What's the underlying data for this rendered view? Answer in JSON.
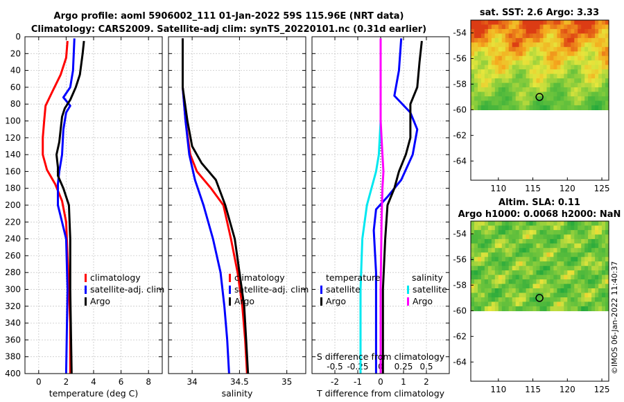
{
  "chart_data": [
    {
      "type": "line",
      "id": "temperature",
      "title": [
        "Argo profile: aoml 5906002_111 01-Jan-2022 59S 115.96E (NRT data)",
        "Climatology: CARS2009. Satellite-adj clim: synTS_20220101.nc (0.31d earlier)"
      ],
      "xlabel": "temperature (deg C)",
      "xlim": [
        -1,
        9
      ],
      "ylim": [
        400,
        0
      ],
      "xticks": [
        "0",
        "2",
        "4",
        "6",
        "8"
      ],
      "xtick_values": [
        0,
        2,
        4,
        6,
        8
      ],
      "yticks": [
        "0",
        "20",
        "40",
        "60",
        "80",
        "100",
        "120",
        "140",
        "160",
        "180",
        "200",
        "220",
        "240",
        "260",
        "280",
        "300",
        "320",
        "340",
        "360",
        "380",
        "400"
      ],
      "ytick_values": [
        0,
        20,
        40,
        60,
        80,
        100,
        120,
        140,
        160,
        180,
        200,
        220,
        240,
        260,
        280,
        300,
        320,
        340,
        360,
        380,
        400
      ],
      "legend": [
        "climatology",
        "satellite-adj. clim",
        "Argo"
      ],
      "series": [
        {
          "name": "climatology",
          "color": "#ff0000",
          "points": [
            [
              2.1,
              5
            ],
            [
              2.0,
              25
            ],
            [
              1.6,
              45
            ],
            [
              1.0,
              65
            ],
            [
              0.5,
              82
            ],
            [
              0.4,
              100
            ],
            [
              0.3,
              120
            ],
            [
              0.3,
              140
            ],
            [
              0.6,
              158
            ],
            [
              1.2,
              175
            ],
            [
              1.7,
              195
            ],
            [
              2.0,
              220
            ],
            [
              2.1,
              260
            ],
            [
              2.2,
              300
            ],
            [
              2.3,
              340
            ],
            [
              2.3,
              400
            ]
          ]
        },
        {
          "name": "satellite-adj. clim",
          "color": "#0000ff",
          "points": [
            [
              2.6,
              2
            ],
            [
              2.5,
              40
            ],
            [
              2.3,
              60
            ],
            [
              1.8,
              72
            ],
            [
              2.3,
              82
            ],
            [
              2.0,
              90
            ],
            [
              1.8,
              110
            ],
            [
              1.7,
              140
            ],
            [
              1.5,
              160
            ],
            [
              1.4,
              175
            ],
            [
              1.4,
              200
            ],
            [
              1.7,
              220
            ],
            [
              2.0,
              240
            ],
            [
              2.1,
              300
            ],
            [
              2.0,
              400
            ]
          ]
        },
        {
          "name": "Argo",
          "color": "#000000",
          "points": [
            [
              3.3,
              5
            ],
            [
              3.2,
              20
            ],
            [
              3.0,
              45
            ],
            [
              2.7,
              60
            ],
            [
              2.3,
              75
            ],
            [
              1.9,
              85
            ],
            [
              1.7,
              95
            ],
            [
              1.6,
              110
            ],
            [
              1.5,
              125
            ],
            [
              1.3,
              140
            ],
            [
              1.4,
              155
            ],
            [
              1.4,
              165
            ],
            [
              1.8,
              180
            ],
            [
              2.2,
              200
            ],
            [
              2.3,
              240
            ],
            [
              2.3,
              300
            ],
            [
              2.4,
              400
            ]
          ]
        }
      ]
    },
    {
      "type": "line",
      "id": "salinity",
      "xlabel": "salinity",
      "xlim": [
        33.75,
        35.2
      ],
      "ylim": [
        400,
        0
      ],
      "xticks": [
        "34",
        "34.5",
        "35"
      ],
      "xtick_values": [
        34,
        34.5,
        35
      ],
      "legend": [
        "climatology",
        "satellite-adj. clim",
        "Argo"
      ],
      "series": [
        {
          "name": "climatology",
          "color": "#ff0000",
          "points": [
            [
              33.9,
              2
            ],
            [
              33.9,
              60
            ],
            [
              33.93,
              100
            ],
            [
              33.98,
              140
            ],
            [
              34.05,
              160
            ],
            [
              34.2,
              180
            ],
            [
              34.33,
              200
            ],
            [
              34.41,
              240
            ],
            [
              34.48,
              280
            ],
            [
              34.53,
              320
            ],
            [
              34.56,
              360
            ],
            [
              34.58,
              400
            ]
          ]
        },
        {
          "name": "satellite-adj. clim",
          "color": "#0000ff",
          "points": [
            [
              33.9,
              2
            ],
            [
              33.9,
              60
            ],
            [
              33.93,
              100
            ],
            [
              33.97,
              140
            ],
            [
              34.03,
              170
            ],
            [
              34.12,
              200
            ],
            [
              34.22,
              240
            ],
            [
              34.3,
              280
            ],
            [
              34.34,
              320
            ],
            [
              34.37,
              360
            ],
            [
              34.39,
              400
            ]
          ]
        },
        {
          "name": "Argo",
          "color": "#000000",
          "points": [
            [
              33.9,
              2
            ],
            [
              33.9,
              60
            ],
            [
              33.95,
              100
            ],
            [
              34.0,
              130
            ],
            [
              34.1,
              150
            ],
            [
              34.25,
              170
            ],
            [
              34.35,
              200
            ],
            [
              34.45,
              240
            ],
            [
              34.5,
              280
            ],
            [
              34.55,
              320
            ],
            [
              34.57,
              360
            ],
            [
              34.59,
              400
            ]
          ]
        }
      ]
    },
    {
      "type": "line",
      "id": "difference",
      "xlabel": "T difference from climatology",
      "top_label": "S difference from climatology",
      "xlim": [
        -3,
        3
      ],
      "ylim": [
        400,
        0
      ],
      "xticks": [
        "-2",
        "-1",
        "0",
        "1",
        "2"
      ],
      "xtick_values": [
        -2,
        -1,
        0,
        1,
        2
      ],
      "sticks": [
        "-0.5",
        "-0.25",
        "0",
        "0.25",
        "0.5"
      ],
      "stick_values": [
        -0.5,
        -0.25,
        0,
        0.25,
        0.5
      ],
      "s_scale": 4,
      "legend_temperature": {
        "heading": "temperature",
        "items": [
          "satellite",
          "Argo"
        ]
      },
      "legend_salinity": {
        "heading": "salinity",
        "items": [
          "satellite",
          "Argo"
        ]
      },
      "series": [
        {
          "name": "temperature satellite",
          "color": "#0000ff",
          "points": [
            [
              0.9,
              2
            ],
            [
              0.8,
              40
            ],
            [
              0.6,
              70
            ],
            [
              1.3,
              90
            ],
            [
              1.6,
              110
            ],
            [
              1.4,
              140
            ],
            [
              0.9,
              170
            ],
            [
              0.3,
              190
            ],
            [
              -0.2,
              205
            ],
            [
              -0.3,
              230
            ],
            [
              -0.2,
              280
            ],
            [
              -0.2,
              400
            ]
          ]
        },
        {
          "name": "temperature Argo",
          "color": "#000000",
          "points": [
            [
              1.8,
              5
            ],
            [
              1.7,
              30
            ],
            [
              1.6,
              60
            ],
            [
              1.3,
              80
            ],
            [
              1.3,
              100
            ],
            [
              1.3,
              120
            ],
            [
              1.1,
              140
            ],
            [
              0.8,
              160
            ],
            [
              0.6,
              180
            ],
            [
              0.3,
              200
            ],
            [
              0.2,
              240
            ],
            [
              0.1,
              300
            ],
            [
              0.1,
              400
            ]
          ]
        },
        {
          "name": "salinity satellite",
          "color": "#00e8f0",
          "points": [
            [
              0.0,
              2
            ],
            [
              0.0,
              100
            ],
            [
              -0.02,
              140
            ],
            [
              -0.05,
              160
            ],
            [
              -0.1,
              180
            ],
            [
              -0.15,
              200
            ],
            [
              -0.2,
              240
            ],
            [
              -0.22,
              300
            ],
            [
              -0.22,
              400
            ]
          ]
        },
        {
          "name": "salinity Argo",
          "color": "#ff00ff",
          "points": [
            [
              0.0,
              2
            ],
            [
              0.0,
              100
            ],
            [
              0.02,
              140
            ],
            [
              0.03,
              160
            ],
            [
              0.02,
              180
            ],
            [
              0.01,
              220
            ],
            [
              0.0,
              300
            ],
            [
              0.0,
              400
            ]
          ]
        }
      ]
    },
    {
      "type": "heatmap",
      "id": "sst_map",
      "title": "sat. SST: 2.6 Argo: 3.33",
      "xticks": [
        "110",
        "115",
        "120",
        "125"
      ],
      "xtick_values": [
        110,
        115,
        120,
        125
      ],
      "yticks": [
        "-54",
        "-56",
        "-58",
        "-60",
        "-62",
        "-64"
      ],
      "ytick_values": [
        -54,
        -56,
        -58,
        -60,
        -62,
        -64
      ],
      "xlim": [
        106,
        126
      ],
      "ylim": [
        -65.5,
        -53
      ],
      "marker": {
        "lon": 115.96,
        "lat": -59
      }
    },
    {
      "type": "heatmap",
      "id": "sla_map",
      "title": [
        "Altim. SLA: 0.11",
        "Argo h1000: 0.0068 h2000: NaN"
      ],
      "xticks": [
        "110",
        "115",
        "120",
        "125"
      ],
      "xtick_values": [
        110,
        115,
        120,
        125
      ],
      "yticks": [
        "-54",
        "-56",
        "-58",
        "-60",
        "-62",
        "-64"
      ],
      "ytick_values": [
        -54,
        -56,
        -58,
        -60,
        -62,
        -64
      ],
      "xlim": [
        106,
        126
      ],
      "ylim": [
        -65.5,
        -53
      ],
      "marker": {
        "lon": 115.96,
        "lat": -59
      }
    }
  ],
  "stamp": "©IMOS 06-Jan-2022 11:40:37"
}
